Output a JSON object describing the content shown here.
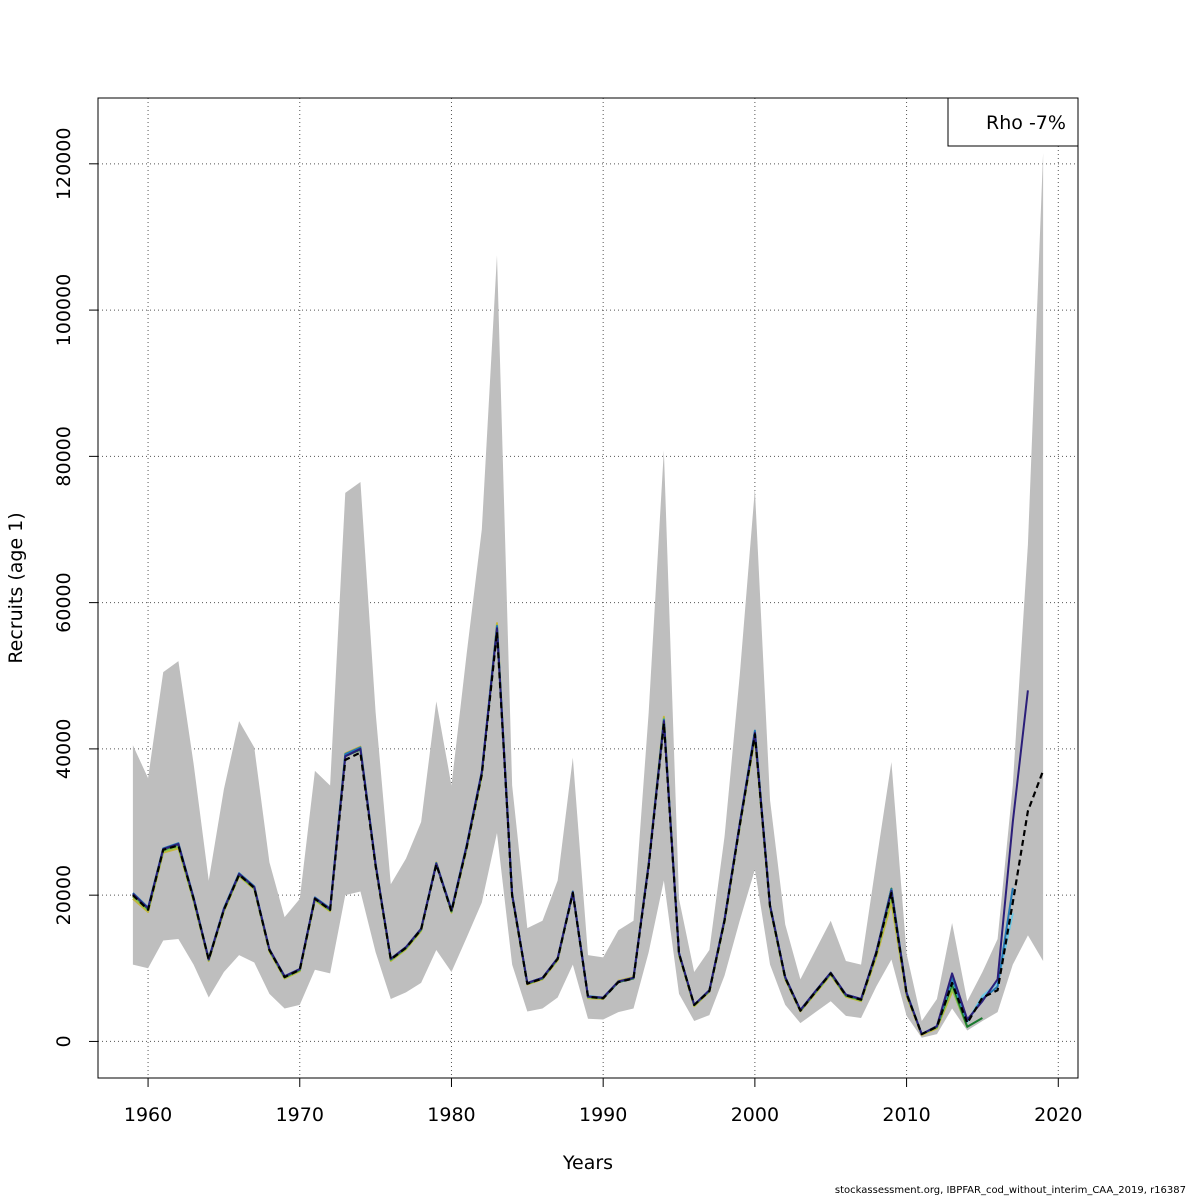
{
  "chart_data": {
    "type": "line",
    "xlabel": "Years",
    "ylabel": "Recruits (age 1)",
    "xlim": [
      1956.7,
      2021.3
    ],
    "ylim": [
      -5000,
      129000
    ],
    "xticks": [
      1960,
      1970,
      1980,
      1990,
      2000,
      2010,
      2020
    ],
    "yticks": [
      0,
      20000,
      40000,
      60000,
      80000,
      100000,
      120000
    ],
    "grid": true,
    "legend_position": "top-right",
    "legend_text": "Rho -7%",
    "colors": {
      "band": "#bebebe",
      "base": "#000000",
      "grid": "#555555"
    },
    "band": {
      "years": [
        1959,
        1960,
        1961,
        1962,
        1963,
        1964,
        1965,
        1966,
        1967,
        1968,
        1969,
        1970,
        1971,
        1972,
        1973,
        1974,
        1975,
        1976,
        1977,
        1978,
        1979,
        1980,
        1981,
        1982,
        1983,
        1984,
        1985,
        1986,
        1987,
        1988,
        1989,
        1990,
        1991,
        1992,
        1993,
        1994,
        1995,
        1996,
        1997,
        1998,
        1999,
        2000,
        2001,
        2002,
        2003,
        2004,
        2005,
        2006,
        2007,
        2008,
        2009,
        2010,
        2011,
        2012,
        2013,
        2014,
        2015,
        2016,
        2017,
        2018,
        2019
      ],
      "upper": [
        40500,
        36000,
        50500,
        52000,
        38000,
        22000,
        34500,
        43800,
        40200,
        24500,
        17000,
        19500,
        37000,
        35000,
        75000,
        76500,
        45000,
        21500,
        25000,
        30000,
        46500,
        35000,
        53000,
        70000,
        107500,
        35000,
        15500,
        16500,
        22000,
        38800,
        11800,
        11500,
        15200,
        16500,
        45000,
        80800,
        19500,
        9500,
        12500,
        28000,
        50000,
        75500,
        33000,
        16000,
        8500,
        12500,
        16500,
        11000,
        10500,
        24500,
        38200,
        12000,
        2800,
        5800,
        16200,
        5500,
        9500,
        14000,
        35000,
        68000,
        121500
      ],
      "lower": [
        10500,
        10000,
        13800,
        14000,
        10500,
        6000,
        9500,
        11800,
        10800,
        6500,
        4500,
        5000,
        9800,
        9300,
        20000,
        20500,
        12200,
        5800,
        6700,
        8000,
        12500,
        9500,
        14200,
        19000,
        28500,
        10500,
        4100,
        4500,
        6000,
        10500,
        3100,
        3000,
        4000,
        4500,
        12200,
        22000,
        6500,
        2800,
        3600,
        9000,
        16500,
        23500,
        10500,
        5000,
        2500,
        4000,
        5500,
        3500,
        3200,
        7500,
        11200,
        3500,
        500,
        1000,
        4500,
        1500,
        2800,
        4000,
        10500,
        14500,
        11000
      ]
    },
    "series": [
      {
        "color": "#000000",
        "dash": "6,4",
        "x": [
          1959,
          1960,
          1961,
          1962,
          1963,
          1964,
          1965,
          1966,
          1967,
          1968,
          1969,
          1970,
          1971,
          1972,
          1973,
          1974,
          1975,
          1976,
          1977,
          1978,
          1979,
          1980,
          1981,
          1982,
          1983,
          1984,
          1985,
          1986,
          1987,
          1988,
          1989,
          1990,
          1991,
          1992,
          1993,
          1994,
          1995,
          1996,
          1997,
          1998,
          1999,
          2000,
          2001,
          2002,
          2003,
          2004,
          2005,
          2006,
          2007,
          2008,
          2009,
          2010,
          2011,
          2012,
          2013,
          2014,
          2015,
          2016,
          2017,
          2018,
          2019
        ],
        "y": [
          20000,
          18000,
          26200,
          26800,
          19500,
          11200,
          18000,
          22800,
          21000,
          12500,
          8800,
          9800,
          19500,
          18000,
          38500,
          39500,
          24000,
          11200,
          12800,
          15300,
          24200,
          17800,
          26500,
          36500,
          56000,
          20000,
          7900,
          8600,
          11300,
          20300,
          6100,
          5900,
          8100,
          8600,
          24000,
          43500,
          12000,
          5000,
          6900,
          16500,
          29500,
          42000,
          18500,
          8700,
          4200,
          6800,
          9300,
          6300,
          5700,
          12000,
          20300,
          6500,
          1000,
          2000,
          8000,
          2500,
          6000,
          7000,
          19000,
          31500,
          37000
        ]
      },
      {
        "color": "#2b1e7a",
        "dash": "",
        "x": [
          1959,
          1960,
          1961,
          1962,
          1963,
          1964,
          1965,
          1966,
          1967,
          1968,
          1969,
          1970,
          1971,
          1972,
          1973,
          1974,
          1975,
          1976,
          1977,
          1978,
          1979,
          1980,
          1981,
          1982,
          1983,
          1984,
          1985,
          1986,
          1987,
          1988,
          1989,
          1990,
          1991,
          1992,
          1993,
          1994,
          1995,
          1996,
          1997,
          1998,
          1999,
          2000,
          2001,
          2002,
          2003,
          2004,
          2005,
          2006,
          2007,
          2008,
          2009,
          2010,
          2011,
          2012,
          2013,
          2014,
          2015,
          2016,
          2017,
          2018
        ],
        "y": [
          20200,
          18200,
          26300,
          27000,
          19600,
          11200,
          18100,
          22900,
          21100,
          12600,
          8900,
          9900,
          19600,
          18100,
          39000,
          40000,
          24200,
          11300,
          12900,
          15400,
          24300,
          17900,
          26700,
          36800,
          56500,
          20100,
          8000,
          8700,
          11400,
          20400,
          6100,
          6000,
          8200,
          8700,
          24200,
          43800,
          12100,
          5000,
          7000,
          16600,
          29700,
          42200,
          18600,
          8800,
          4300,
          6900,
          9400,
          6400,
          5800,
          12200,
          20600,
          6600,
          1000,
          2100,
          9300,
          3000,
          5500,
          8500,
          30000,
          48000
        ]
      },
      {
        "color": "#1f77b4",
        "dash": "",
        "x": [
          1959,
          1960,
          1961,
          1962,
          1963,
          1964,
          1965,
          1966,
          1967,
          1968,
          1969,
          1970,
          1971,
          1972,
          1973,
          1974,
          1975,
          1976,
          1977,
          1978,
          1979,
          1980,
          1981,
          1982,
          1983,
          1984,
          1985,
          1986,
          1987,
          1988,
          1989,
          1990,
          1991,
          1992,
          1993,
          1994,
          1995,
          1996,
          1997,
          1998,
          1999,
          2000,
          2001,
          2002,
          2003,
          2004,
          2005,
          2006,
          2007,
          2008,
          2009,
          2010,
          2011,
          2012,
          2013,
          2014,
          2015,
          2016,
          2017
        ],
        "y": [
          20300,
          18300,
          26400,
          27100,
          19700,
          11300,
          18200,
          23000,
          21200,
          12600,
          8900,
          9900,
          19700,
          18200,
          39300,
          40200,
          24300,
          11300,
          12900,
          15400,
          24400,
          18000,
          26800,
          36900,
          56800,
          20200,
          8000,
          8700,
          11400,
          20500,
          6200,
          6000,
          8200,
          8700,
          24300,
          44000,
          12100,
          5000,
          7000,
          16700,
          29800,
          42500,
          18700,
          8800,
          4300,
          6900,
          9400,
          6400,
          5800,
          12200,
          20800,
          6700,
          1000,
          2100,
          8700,
          2800,
          5800,
          7500,
          21000
        ]
      },
      {
        "color": "#6bc8e6",
        "dash": "",
        "x": [
          1959,
          1960,
          1961,
          1962,
          1963,
          1964,
          1965,
          1966,
          1967,
          1968,
          1969,
          1970,
          1971,
          1972,
          1973,
          1974,
          1975,
          1976,
          1977,
          1978,
          1979,
          1980,
          1981,
          1982,
          1983,
          1984,
          1985,
          1986,
          1987,
          1988,
          1989,
          1990,
          1991,
          1992,
          1993,
          1994,
          1995,
          1996,
          1997,
          1998,
          1999,
          2000,
          2001,
          2002,
          2003,
          2004,
          2005,
          2006,
          2007,
          2008,
          2009,
          2010,
          2011,
          2012,
          2013,
          2014,
          2015,
          2016,
          2017
        ],
        "y": [
          20200,
          18200,
          26300,
          27000,
          19600,
          11200,
          18100,
          22900,
          21100,
          12600,
          8900,
          9900,
          19600,
          18100,
          39100,
          40100,
          24200,
          11300,
          12900,
          15400,
          24300,
          17900,
          26700,
          36800,
          56600,
          20100,
          8000,
          8700,
          11400,
          20400,
          6100,
          6000,
          8200,
          8700,
          24200,
          43900,
          12100,
          5000,
          7000,
          16600,
          29700,
          42300,
          18600,
          8800,
          4300,
          6900,
          9400,
          6400,
          5800,
          12200,
          20700,
          6600,
          1000,
          2100,
          8500,
          2700,
          6200,
          8000,
          17500
        ]
      },
      {
        "color": "#1a7a2e",
        "dash": "",
        "x": [
          1959,
          1960,
          1961,
          1962,
          1963,
          1964,
          1965,
          1966,
          1967,
          1968,
          1969,
          1970,
          1971,
          1972,
          1973,
          1974,
          1975,
          1976,
          1977,
          1978,
          1979,
          1980,
          1981,
          1982,
          1983,
          1984,
          1985,
          1986,
          1987,
          1988,
          1989,
          1990,
          1991,
          1992,
          1993,
          1994,
          1995,
          1996,
          1997,
          1998,
          1999,
          2000,
          2001,
          2002,
          2003,
          2004,
          2005,
          2006,
          2007,
          2008,
          2009,
          2010,
          2011,
          2012,
          2013,
          2014,
          2015
        ],
        "y": [
          20100,
          18100,
          26200,
          26900,
          19500,
          11200,
          18000,
          22800,
          21000,
          12500,
          8800,
          9800,
          19500,
          18000,
          39000,
          39900,
          24100,
          11200,
          12800,
          15300,
          24200,
          17800,
          26600,
          36700,
          56400,
          20000,
          7900,
          8600,
          11300,
          20300,
          6100,
          5900,
          8100,
          8600,
          24100,
          43700,
          12000,
          5000,
          6900,
          16500,
          29600,
          42100,
          18500,
          8700,
          4200,
          6800,
          9300,
          6300,
          5700,
          12100,
          20900,
          6600,
          1000,
          2000,
          7800,
          2000,
          3200
        ]
      },
      {
        "color": "#8bc34a",
        "dash": "",
        "x": [
          1959,
          1960,
          1961,
          1962,
          1963,
          1964,
          1965,
          1966,
          1967,
          1968,
          1969,
          1970,
          1971,
          1972,
          1973,
          1974,
          1975,
          1976,
          1977,
          1978,
          1979,
          1980,
          1981,
          1982,
          1983,
          1984,
          1985,
          1986,
          1987,
          1988,
          1989,
          1990,
          1991,
          1992,
          1993,
          1994,
          1995,
          1996,
          1997,
          1998,
          1999,
          2000,
          2001,
          2002,
          2003,
          2004,
          2005,
          2006,
          2007,
          2008,
          2009,
          2010,
          2011,
          2012,
          2013,
          2014
        ],
        "y": [
          19800,
          17900,
          26000,
          26600,
          19300,
          11100,
          17900,
          22700,
          20900,
          12400,
          8700,
          9700,
          19400,
          17900,
          39200,
          40100,
          24000,
          11100,
          12700,
          15200,
          24400,
          17700,
          26400,
          36400,
          56900,
          19900,
          7900,
          8600,
          11200,
          20400,
          6000,
          5900,
          8200,
          8700,
          24300,
          44200,
          11900,
          4900,
          6900,
          16400,
          29400,
          41800,
          18400,
          8600,
          4200,
          6700,
          9200,
          6200,
          5600,
          11800,
          19800,
          6400,
          1000,
          1900,
          7200,
          1900
        ]
      },
      {
        "color": "#c8b43c",
        "dash": "",
        "x": [
          1959,
          1960,
          1961,
          1962,
          1963,
          1964,
          1965,
          1966,
          1967,
          1968,
          1969,
          1970,
          1971,
          1972,
          1973,
          1974,
          1975,
          1976,
          1977,
          1978,
          1979,
          1980,
          1981,
          1982,
          1983,
          1984,
          1985,
          1986,
          1987,
          1988,
          1989,
          1990,
          1991,
          1992,
          1993,
          1994,
          1995,
          1996,
          1997,
          1998,
          1999,
          2000,
          2001,
          2002,
          2003,
          2004,
          2005,
          2006,
          2007,
          2008,
          2009,
          2010,
          2011,
          2012,
          2013
        ],
        "y": [
          19500,
          17700,
          25800,
          26400,
          19200,
          11000,
          17800,
          22600,
          20800,
          12300,
          8600,
          9600,
          19300,
          17800,
          39400,
          40300,
          23900,
          11000,
          12600,
          15100,
          24500,
          17600,
          26300,
          36300,
          57200,
          19800,
          7800,
          8500,
          11100,
          20500,
          5900,
          5800,
          8300,
          8800,
          24400,
          44400,
          11800,
          4800,
          6800,
          16300,
          29300,
          41500,
          18300,
          8500,
          4100,
          6600,
          9100,
          6100,
          5500,
          11500,
          19000,
          6200,
          900,
          1800,
          6800
        ]
      }
    ],
    "footer_text": "stockassessment.org, IBPFAR_cod_without_interim_CAA_2019, r16387"
  }
}
